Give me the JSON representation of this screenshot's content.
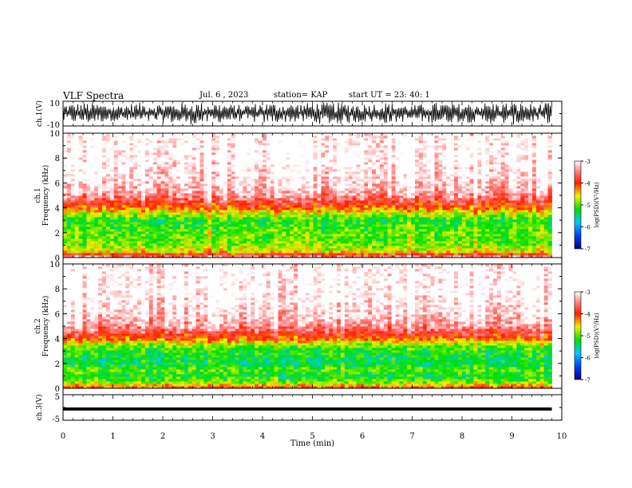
{
  "header": {
    "title": "VLF Spectra",
    "date": "Jul. 6 , 2023",
    "station": "station= KAP",
    "start": "start UT = 23: 40: 1"
  },
  "chart_data": [
    {
      "type": "line",
      "panel": "ch1-waveform",
      "ylabel": "ch.1(V)",
      "ylim": [
        -10,
        10
      ],
      "yticks": [
        "10",
        "-10"
      ],
      "x": [
        0,
        0.5,
        1,
        1.5,
        2,
        2.5,
        3,
        3.5,
        4,
        4.5,
        5,
        5.5,
        6,
        6.5,
        7,
        7.5,
        8,
        8.5,
        9,
        9.5,
        9.8
      ],
      "upper_envelope": [
        8,
        9,
        7,
        9,
        8,
        9,
        9,
        7,
        9,
        8,
        9,
        9,
        8,
        9,
        7,
        9,
        8,
        9,
        9,
        8,
        9
      ],
      "lower_envelope": [
        -7,
        -8,
        -6,
        -8,
        -7,
        -9,
        -8,
        -6,
        -8,
        -7,
        -8,
        -9,
        -7,
        -8,
        -6,
        -8,
        -7,
        -8,
        -9,
        -7,
        -8
      ],
      "color": "#000000"
    },
    {
      "type": "heatmap",
      "panel": "ch1-spectrogram",
      "ylabel": "ch.1 Frequency (kHz)",
      "ylim": [
        0,
        10
      ],
      "yticks": [
        "0",
        "2",
        "4",
        "6",
        "8",
        "10"
      ],
      "xlim": [
        0,
        9.8
      ],
      "spectrum_profile": {
        "freq_khz": [
          0,
          0.5,
          1,
          1.5,
          2,
          2.5,
          3,
          3.5,
          4,
          4.5,
          5,
          6,
          7,
          8,
          9,
          10
        ],
        "log_psd": [
          -3.2,
          -4.6,
          -4.9,
          -5.0,
          -5.0,
          -5.1,
          -5.2,
          -4.8,
          -4.2,
          -3.8,
          -3.4,
          -3.1,
          -3.0,
          -2.9,
          -2.9,
          -2.9
        ]
      },
      "colorbar": {
        "label": "log(PSD)(V²/Hz)",
        "min": -7,
        "max": -3,
        "ticks": [
          "-3",
          "-4",
          "-5",
          "-6",
          "-7"
        ]
      }
    },
    {
      "type": "heatmap",
      "panel": "ch2-spectrogram",
      "ylabel": "ch.2 Frequency (kHz)",
      "ylim": [
        0,
        10
      ],
      "yticks": [
        "0",
        "2",
        "4",
        "6",
        "8",
        "10"
      ],
      "xlim": [
        0,
        9.8
      ],
      "spectrum_profile": {
        "freq_khz": [
          0,
          0.5,
          1,
          1.5,
          2,
          2.5,
          3,
          3.5,
          4,
          4.5,
          5,
          6,
          7,
          8,
          9,
          10
        ],
        "log_psd": [
          -4.0,
          -4.9,
          -5.3,
          -5.0,
          -5.4,
          -5.3,
          -5.2,
          -4.9,
          -4.2,
          -3.8,
          -3.4,
          -3.1,
          -3.0,
          -2.9,
          -2.9,
          -2.9
        ]
      },
      "colorbar": {
        "label": "log(PSD)(V²/Hz)",
        "min": -7,
        "max": -3,
        "ticks": [
          "-3",
          "-4",
          "-5",
          "-6",
          "-7"
        ]
      }
    },
    {
      "type": "line",
      "panel": "ch3-waveform",
      "ylabel": "ch.3(V)",
      "ylim": [
        -5,
        5
      ],
      "yticks": [
        "5",
        "-5"
      ],
      "x": [
        0,
        9.8
      ],
      "upper_envelope": [
        0.0,
        0.0
      ],
      "lower_envelope": [
        -1.2,
        -1.2
      ],
      "color": "#000000"
    },
    {
      "type": "axis",
      "panel": "shared-time-axis",
      "xlabel": "Time (min)",
      "xlim": [
        0,
        10
      ],
      "xticks": [
        "0",
        "1",
        "2",
        "3",
        "4",
        "5",
        "6",
        "7",
        "8",
        "9",
        "10"
      ]
    }
  ]
}
